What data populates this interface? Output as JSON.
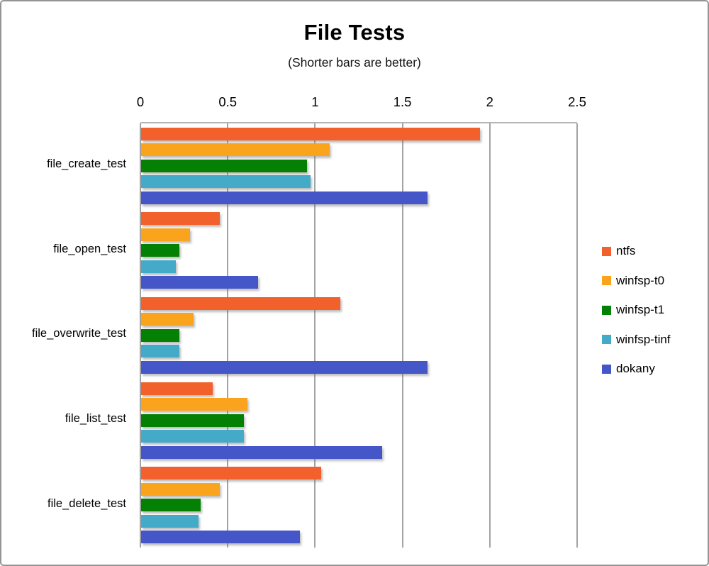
{
  "window": {
    "background": "#ffffff",
    "frame_border_color": "#949494"
  },
  "chart_data": {
    "type": "bar",
    "orientation": "horizontal",
    "title": "File Tests",
    "subtitle": "(Shorter bars are better)",
    "grid": true,
    "gridline_color": "#a3a3a3",
    "categories": [
      "file_create_test",
      "file_open_test",
      "file_overwrite_test",
      "file_list_test",
      "file_delete_test"
    ],
    "series": [
      {
        "name": "ntfs",
        "color": "#F2602C",
        "values": [
          1.94,
          0.45,
          1.14,
          0.41,
          1.03
        ]
      },
      {
        "name": "winfsp-t0",
        "color": "#FAA41E",
        "values": [
          1.08,
          0.28,
          0.3,
          0.61,
          0.45
        ]
      },
      {
        "name": "winfsp-t1",
        "color": "#048004",
        "values": [
          0.95,
          0.22,
          0.22,
          0.59,
          0.34
        ]
      },
      {
        "name": "winfsp-tinf",
        "color": "#43AAC7",
        "values": [
          0.97,
          0.2,
          0.22,
          0.59,
          0.33
        ]
      },
      {
        "name": "dokany",
        "color": "#4456C8",
        "values": [
          1.64,
          0.67,
          1.64,
          1.38,
          0.91
        ]
      }
    ],
    "x_axis": {
      "min": 0,
      "max": 2.5,
      "tick_interval": 0.5,
      "tick_labels": [
        "0",
        "0.5",
        "1",
        "1.5",
        "2",
        "2.5"
      ]
    },
    "legend": {
      "position": "right",
      "entries": [
        "ntfs",
        "winfsp-t0",
        "winfsp-t1",
        "winfsp-tinf",
        "dokany"
      ]
    }
  }
}
